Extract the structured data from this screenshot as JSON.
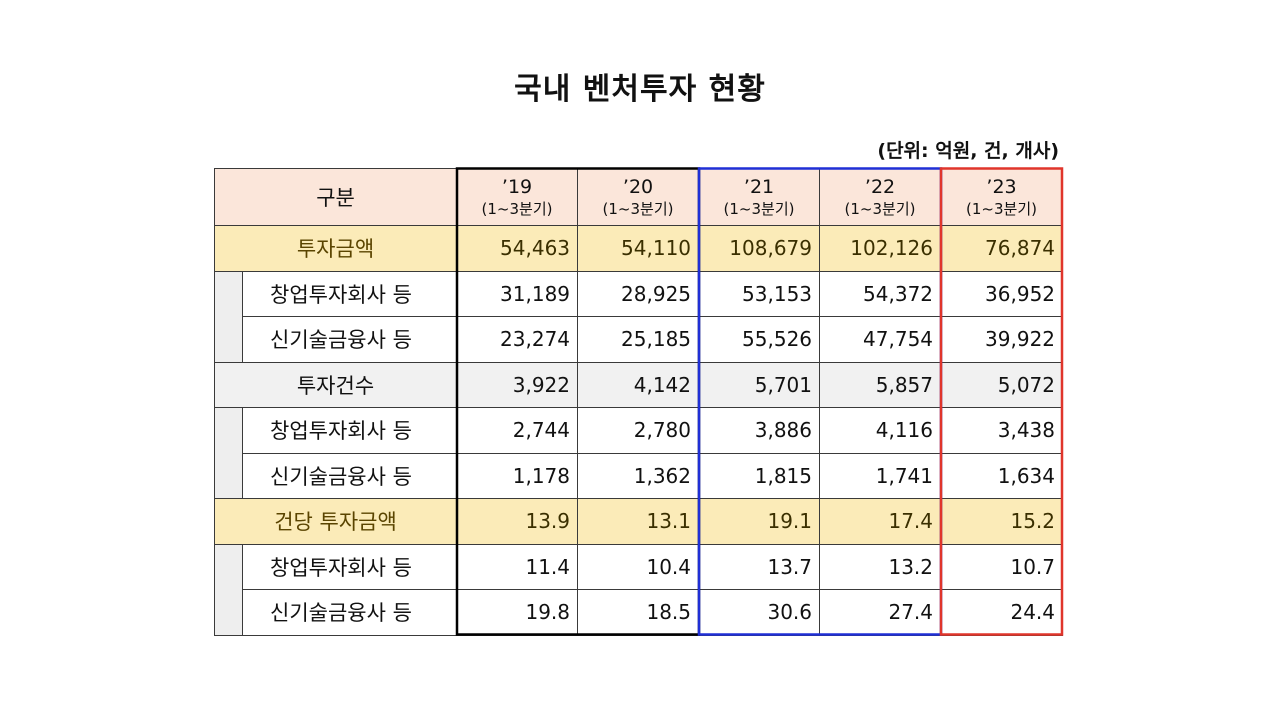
{
  "title": "국내 벤처투자 현황",
  "unit": "(단위: 억원, 건, 개사)",
  "table": {
    "header": {
      "category": "구분",
      "years": [
        {
          "year": "’19",
          "period": "(1~3분기)"
        },
        {
          "year": "’20",
          "period": "(1~3분기)"
        },
        {
          "year": "’21",
          "period": "(1~3분기)"
        },
        {
          "year": "’22",
          "period": "(1~3분기)"
        },
        {
          "year": "’23",
          "period": "(1~3분기)"
        }
      ]
    },
    "rows": [
      {
        "label": "투자금액",
        "values": [
          "54,463",
          "54,110",
          "108,679",
          "102,126",
          "76,874"
        ]
      },
      {
        "label": "창업투자회사 등",
        "values": [
          "31,189",
          "28,925",
          "53,153",
          "54,372",
          "36,952"
        ]
      },
      {
        "label": "신기술금융사 등",
        "values": [
          "23,274",
          "25,185",
          "55,526",
          "47,754",
          "39,922"
        ]
      },
      {
        "label": "투자건수",
        "values": [
          "3,922",
          "4,142",
          "5,701",
          "5,857",
          "5,072"
        ]
      },
      {
        "label": "창업투자회사 등",
        "values": [
          "2,744",
          "2,780",
          "3,886",
          "4,116",
          "3,438"
        ]
      },
      {
        "label": "신기술금융사 등",
        "values": [
          "1,178",
          "1,362",
          "1,815",
          "1,741",
          "1,634"
        ]
      },
      {
        "label": "건당 투자금액",
        "values": [
          "13.9",
          "13.1",
          "19.1",
          "17.4",
          "15.2"
        ]
      },
      {
        "label": "창업투자회사 등",
        "values": [
          "11.4",
          "10.4",
          "13.7",
          "13.2",
          "10.7"
        ]
      },
      {
        "label": "신기술금융사 등",
        "values": [
          "19.8",
          "18.5",
          "30.6",
          "27.4",
          "24.4"
        ]
      }
    ]
  },
  "colors": {
    "header_bg": "#fbe6da",
    "highlight_row_bg": "#fbebb8",
    "gray_row_bg": "#f1f1f1",
    "box_black": "#000000",
    "box_blue": "#1f2fd6",
    "box_red": "#e0352b"
  }
}
